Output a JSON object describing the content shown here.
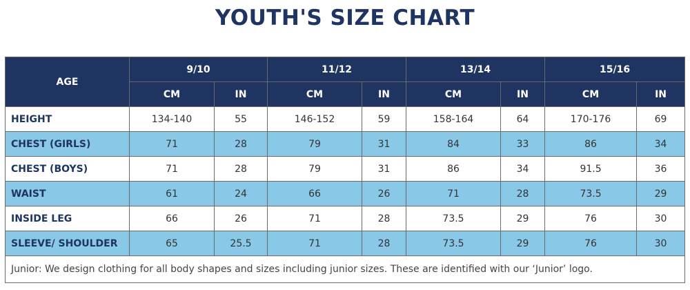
{
  "title": "YOUTH'S SIZE CHART",
  "table": {
    "corner": "AGE",
    "groups": [
      "9/10",
      "11/12",
      "13/14",
      "15/16"
    ],
    "units": [
      "CM",
      "IN"
    ],
    "rows": [
      {
        "label": "HEIGHT",
        "cells": [
          "134-140",
          55,
          "146-152",
          59,
          "158-164",
          64,
          "170-176",
          69
        ]
      },
      {
        "label": "CHEST (GIRLS)",
        "cells": [
          71,
          28,
          79,
          31,
          84,
          33,
          86,
          34
        ]
      },
      {
        "label": "CHEST (BOYS)",
        "cells": [
          71,
          28,
          79,
          31,
          86,
          34,
          91.5,
          36
        ]
      },
      {
        "label": "WAIST",
        "cells": [
          61,
          24,
          66,
          26,
          71,
          28,
          73.5,
          29
        ]
      },
      {
        "label": "INSIDE LEG",
        "cells": [
          66,
          26,
          71,
          28,
          73.5,
          29,
          76,
          30
        ]
      },
      {
        "label": "SLEEVE/ SHOULDER",
        "cells": [
          65,
          25.5,
          71,
          28,
          73.5,
          29,
          76,
          30
        ]
      }
    ]
  },
  "footer": "Junior: We design clothing for all body shapes and sizes including junior sizes. These are identified with our ‘Junior’ logo."
}
